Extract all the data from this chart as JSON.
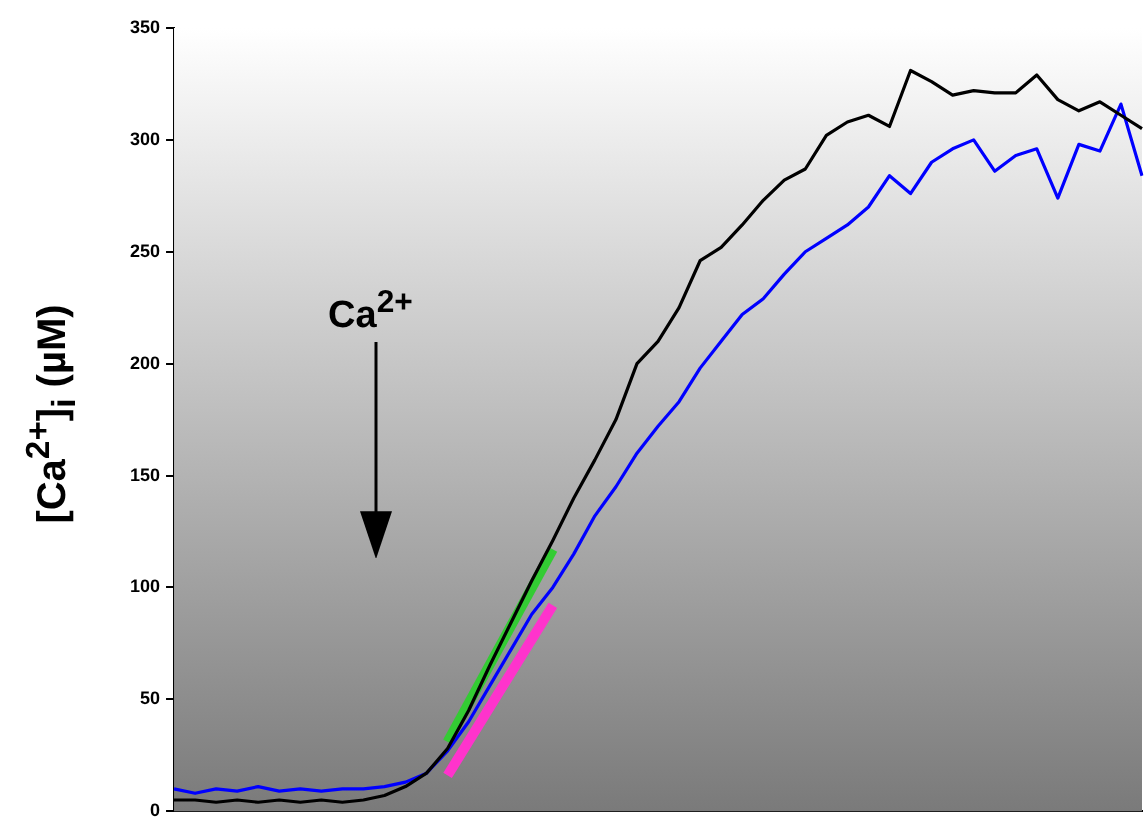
{
  "chart_data": {
    "type": "line",
    "ylabel": "[Ca$^{2+}$]$_{i}$ (µM)",
    "annotations": [
      "Ca$^{2+}$"
    ],
    "categories": [
      null,
      null,
      null,
      null,
      null,
      null,
      null,
      null,
      null,
      null,
      null,
      null,
      null,
      null,
      null,
      null,
      null,
      null,
      null,
      null,
      null,
      null,
      null,
      null,
      null,
      null,
      null,
      null,
      null,
      null,
      null,
      null,
      null,
      null,
      null,
      null,
      null,
      null,
      null,
      null,
      null,
      null,
      null,
      null,
      null,
      null,
      null
    ],
    "series": [
      {
        "color": "#000000",
        "values": [
          5,
          5,
          4,
          5,
          4,
          5,
          4,
          5,
          4,
          5,
          7,
          11,
          17,
          28,
          45,
          65,
          84,
          103,
          121,
          140,
          157,
          175,
          200,
          210,
          225,
          246,
          252,
          262,
          273,
          282,
          287,
          302,
          308,
          311,
          306,
          331,
          326,
          320,
          322,
          321,
          321,
          329,
          318,
          313,
          317,
          311,
          305
        ]
      },
      {
        "color": "#0000ff",
        "values": [
          10,
          8,
          10,
          9,
          11,
          9,
          10,
          9,
          10,
          10,
          11,
          13,
          17,
          27,
          40,
          56,
          72,
          88,
          100,
          115,
          132,
          145,
          160,
          172,
          183,
          198,
          210,
          222,
          229,
          240,
          250,
          256,
          262,
          270,
          284,
          276,
          290,
          296,
          300,
          286,
          293,
          296,
          274,
          298,
          295,
          316,
          284
        ]
      },
      {
        "type": "line",
        "color": "#33cc33",
        "values": [
          null,
          null,
          null,
          null,
          null,
          null,
          null,
          null,
          null,
          null,
          null,
          null,
          null,
          31,
          null,
          null,
          null,
          null,
          117,
          null,
          null,
          null,
          null,
          null,
          null,
          null,
          null,
          null,
          null,
          null,
          null,
          null,
          null,
          null,
          null,
          null,
          null,
          null,
          null,
          null,
          null,
          null,
          null,
          null,
          null,
          null,
          null
        ]
      },
      {
        "type": "line",
        "color": "#ff33cc",
        "values": [
          null,
          null,
          null,
          null,
          null,
          null,
          null,
          null,
          null,
          null,
          null,
          null,
          null,
          16,
          null,
          null,
          null,
          null,
          92,
          null,
          null,
          null,
          null,
          null,
          null,
          null,
          null,
          null,
          null,
          null,
          null,
          null,
          null,
          null,
          null,
          null,
          null,
          null,
          null,
          null,
          null,
          null,
          null,
          null,
          null,
          null,
          null
        ]
      }
    ],
    "ylim": [
      0,
      350
    ],
    "yticks": [
      0,
      50,
      100,
      150,
      200,
      250,
      300,
      350
    ],
    "grid": false,
    "legend": false,
    "tick_labels": "y",
    "marker": "none"
  }
}
